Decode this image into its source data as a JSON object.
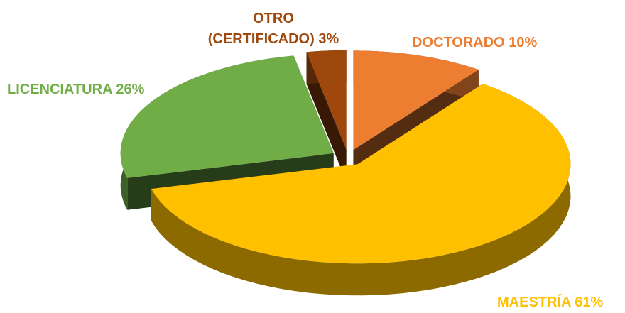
{
  "chart_data": {
    "type": "pie",
    "categories": [
      "DOCTORADO",
      "MAESTRÍA",
      "LICENCIATURA",
      "OTRO (CERTIFICADO)"
    ],
    "values": [
      10,
      61,
      26,
      3
    ],
    "value_labels": [
      "10%",
      "61%",
      "26%",
      "3%"
    ],
    "colors": [
      "#ED7D31",
      "#FFC000",
      "#70AD47",
      "#9E480E"
    ]
  }
}
